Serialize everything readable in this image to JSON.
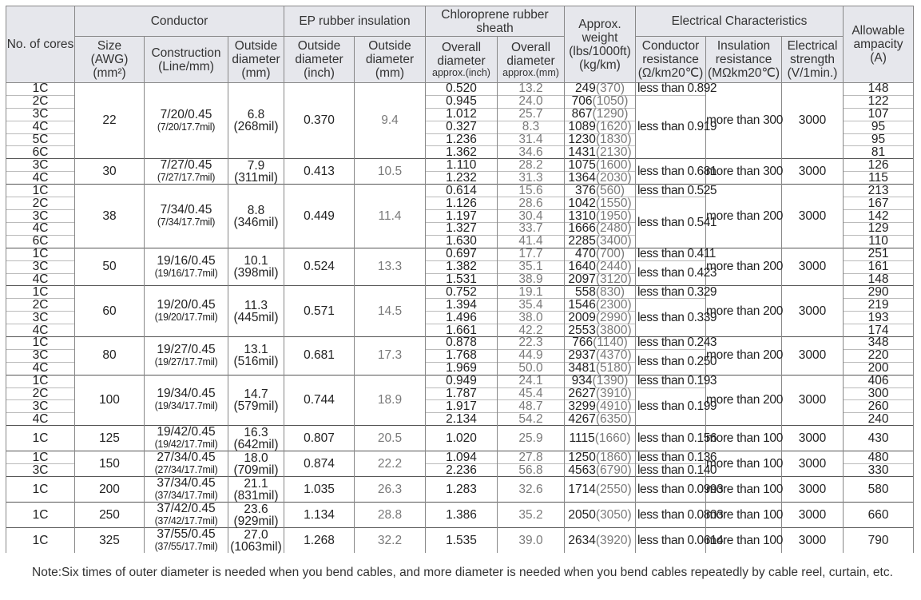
{
  "header": {
    "cores": "No. of cores",
    "conductor": "Conductor",
    "size": "Size\n(AWG)\n(mm²)",
    "construction": "Construction\n(Line/mm)",
    "conductor_od": "Outside\ndiameter\n(mm)",
    "ep": "EP rubber insulation",
    "ep_inch": "Outside\ndiameter\n(inch)",
    "ep_mm": "Outside\ndiameter\n(mm)",
    "sheath": "Chloroprene rubber\nsheath",
    "sheath_inch": "Overall\ndiameter",
    "sheath_inch_unit": "approx.(inch)",
    "sheath_mm": "Overall\ndiameter",
    "sheath_mm_unit": "approx.(mm)",
    "weight": "Approx.\nweight\n(lbs/1000ft)\n(kg/km)",
    "electrical": "Electrical Characteristics",
    "resistance": "Conductor\nresistance\n(Ω/km20℃)",
    "insulation": "Insulation\nresistance\n(MΩkm20℃)",
    "strength": "Electrical\nstrength\n(V/1min.)",
    "ampacity": "Allowable\nampacity\n(A)"
  },
  "table": {
    "groups": [
      {
        "size": "22",
        "construction": "7/20/0.45",
        "construction_detail": "(7/20/17.7mil)",
        "od": "6.8",
        "od_mil": "(268mil)",
        "ep_inch": "0.370",
        "ep_mm": "9.4",
        "insulation": "more than 300",
        "strength": "3000",
        "blocks": [
          {
            "resistance": "less than 0.892",
            "rows": [
              {
                "cores": "1C",
                "overall_inch": "0.520",
                "overall_mm": "13.2",
                "weight": "249",
                "weight_kg": "(370)",
                "ampacity": "148"
              }
            ]
          },
          {
            "resistance": "less than 0.919",
            "rows": [
              {
                "cores": "2C",
                "overall_inch": "0.945",
                "overall_mm": "24.0",
                "weight": "706",
                "weight_kg": "(1050)",
                "ampacity": "122"
              },
              {
                "cores": "3C",
                "overall_inch": "1.012",
                "overall_mm": "25.7",
                "weight": "867",
                "weight_kg": "(1290)",
                "ampacity": "107"
              },
              {
                "cores": "4C",
                "overall_inch": "0.327",
                "overall_mm": "8.3",
                "weight": "1089",
                "weight_kg": "(1620)",
                "ampacity": "95"
              },
              {
                "cores": "5C",
                "overall_inch": "1.236",
                "overall_mm": "31.4",
                "weight": "1230",
                "weight_kg": "(1830)",
                "ampacity": "95"
              },
              {
                "cores": "6C",
                "overall_inch": "1.362",
                "overall_mm": "34.6",
                "weight": "1431",
                "weight_kg": "(2130)",
                "ampacity": "81"
              }
            ]
          }
        ]
      },
      {
        "size": "30",
        "construction": "7/27/0.45",
        "construction_detail": "(7/27/17.7mil)",
        "od": "7.9",
        "od_mil": "(311mil)",
        "ep_inch": "0.413",
        "ep_mm": "10.5",
        "insulation": "more than 300",
        "strength": "3000",
        "blocks": [
          {
            "resistance": "less than 0.681",
            "rows": [
              {
                "cores": "3C",
                "overall_inch": "1.110",
                "overall_mm": "28.2",
                "weight": "1075",
                "weight_kg": "(1600)",
                "ampacity": "126"
              },
              {
                "cores": "4C",
                "overall_inch": "1.232",
                "overall_mm": "31.3",
                "weight": "1364",
                "weight_kg": "(2030)",
                "ampacity": "115"
              }
            ]
          }
        ]
      },
      {
        "size": "38",
        "construction": "7/34/0.45",
        "construction_detail": "(7/34/17.7mil)",
        "od": "8.8",
        "od_mil": "(346mil)",
        "ep_inch": "0.449",
        "ep_mm": "11.4",
        "insulation": "more than 200",
        "strength": "3000",
        "blocks": [
          {
            "resistance": "less than 0.525",
            "rows": [
              {
                "cores": "1C",
                "overall_inch": "0.614",
                "overall_mm": "15.6",
                "weight": "376",
                "weight_kg": "(560)",
                "ampacity": "213"
              }
            ]
          },
          {
            "resistance": "less than 0.541",
            "rows": [
              {
                "cores": "2C",
                "overall_inch": "1.126",
                "overall_mm": "28.6",
                "weight": "1042",
                "weight_kg": "(1550)",
                "ampacity": "167"
              },
              {
                "cores": "3C",
                "overall_inch": "1.197",
                "overall_mm": "30.4",
                "weight": "1310",
                "weight_kg": "(1950)",
                "ampacity": "142"
              },
              {
                "cores": "4C",
                "overall_inch": "1.327",
                "overall_mm": "33.7",
                "weight": "1666",
                "weight_kg": "(2480)",
                "ampacity": "129"
              },
              {
                "cores": "6C",
                "overall_inch": "1.630",
                "overall_mm": "41.4",
                "weight": "2285",
                "weight_kg": "(3400)",
                "ampacity": "110"
              }
            ]
          }
        ]
      },
      {
        "size": "50",
        "construction": "19/16/0.45",
        "construction_detail": "(19/16/17.7mil)",
        "od": "10.1",
        "od_mil": "(398mil)",
        "ep_inch": "0.524",
        "ep_mm": "13.3",
        "insulation": "more than 200",
        "strength": "3000",
        "blocks": [
          {
            "resistance": "less than 0.411",
            "rows": [
              {
                "cores": "1C",
                "overall_inch": "0.697",
                "overall_mm": "17.7",
                "weight": "470",
                "weight_kg": "(700)",
                "ampacity": "251"
              }
            ]
          },
          {
            "resistance": "less than 0.423",
            "rows": [
              {
                "cores": "3C",
                "overall_inch": "1.382",
                "overall_mm": "35.1",
                "weight": "1640",
                "weight_kg": "(2440)",
                "ampacity": "161"
              },
              {
                "cores": "4C",
                "overall_inch": "1.531",
                "overall_mm": "38.9",
                "weight": "2097",
                "weight_kg": "(3120)",
                "ampacity": "148"
              }
            ]
          }
        ]
      },
      {
        "size": "60",
        "construction": "19/20/0.45",
        "construction_detail": "(19/20/17.7mil)",
        "od": "11.3",
        "od_mil": "(445mil)",
        "ep_inch": "0.571",
        "ep_mm": "14.5",
        "insulation": "more than 200",
        "strength": "3000",
        "blocks": [
          {
            "resistance": "less than 0.329",
            "rows": [
              {
                "cores": "1C",
                "overall_inch": "0.752",
                "overall_mm": "19.1",
                "weight": "558",
                "weight_kg": "(830)",
                "ampacity": "290"
              }
            ]
          },
          {
            "resistance": "less than 0.339",
            "rows": [
              {
                "cores": "2C",
                "overall_inch": "1.394",
                "overall_mm": "35.4",
                "weight": "1546",
                "weight_kg": "(2300)",
                "ampacity": "219"
              },
              {
                "cores": "3C",
                "overall_inch": "1.496",
                "overall_mm": "38.0",
                "weight": "2009",
                "weight_kg": "(2990)",
                "ampacity": "193"
              },
              {
                "cores": "4C",
                "overall_inch": "1.661",
                "overall_mm": "42.2",
                "weight": "2553",
                "weight_kg": "(3800)",
                "ampacity": "174"
              }
            ]
          }
        ]
      },
      {
        "size": "80",
        "construction": "19/27/0.45",
        "construction_detail": "(19/27/17.7mil)",
        "od": "13.1",
        "od_mil": "(516mil)",
        "ep_inch": "0.681",
        "ep_mm": "17.3",
        "insulation": "more than 200",
        "strength": "3000",
        "blocks": [
          {
            "resistance": "less than 0.243",
            "rows": [
              {
                "cores": "1C",
                "overall_inch": "0.878",
                "overall_mm": "22.3",
                "weight": "766",
                "weight_kg": "(1140)",
                "ampacity": "348"
              }
            ]
          },
          {
            "resistance": "less than 0.250",
            "rows": [
              {
                "cores": "3C",
                "overall_inch": "1.768",
                "overall_mm": "44.9",
                "weight": "2937",
                "weight_kg": "(4370)",
                "ampacity": "220"
              },
              {
                "cores": "4C",
                "overall_inch": "1.969",
                "overall_mm": "50.0",
                "weight": "3481",
                "weight_kg": "(5180)",
                "ampacity": "200"
              }
            ]
          }
        ]
      },
      {
        "size": "100",
        "construction": "19/34/0.45",
        "construction_detail": "(19/34/17.7mil)",
        "od": "14.7",
        "od_mil": "(579mil)",
        "ep_inch": "0.744",
        "ep_mm": "18.9",
        "insulation": "more than 200",
        "strength": "3000",
        "blocks": [
          {
            "resistance": "less than 0.193",
            "rows": [
              {
                "cores": "1C",
                "overall_inch": "0.949",
                "overall_mm": "24.1",
                "weight": "934",
                "weight_kg": "(1390)",
                "ampacity": "406"
              }
            ]
          },
          {
            "resistance": "less than 0.199",
            "rows": [
              {
                "cores": "2C",
                "overall_inch": "1.787",
                "overall_mm": "45.4",
                "weight": "2627",
                "weight_kg": "(3910)",
                "ampacity": "300"
              },
              {
                "cores": "3C",
                "overall_inch": "1.917",
                "overall_mm": "48.7",
                "weight": "3299",
                "weight_kg": "(4910)",
                "ampacity": "260"
              },
              {
                "cores": "4C",
                "overall_inch": "2.134",
                "overall_mm": "54.2",
                "weight": "4267",
                "weight_kg": "(6350)",
                "ampacity": "240"
              }
            ]
          }
        ]
      },
      {
        "size": "125",
        "construction": "19/42/0.45",
        "construction_detail": "(19/42/17.7mil)",
        "od": "16.3",
        "od_mil": "(642mil)",
        "ep_inch": "0.807",
        "ep_mm": "20.5",
        "insulation": "more than 100",
        "strength": "3000",
        "blocks": [
          {
            "resistance": "less than 0.156",
            "rows": [
              {
                "cores": "1C",
                "overall_inch": "1.020",
                "overall_mm": "25.9",
                "weight": "1115",
                "weight_kg": "(1660)",
                "ampacity": "430"
              }
            ]
          }
        ]
      },
      {
        "size": "150",
        "construction": "27/34/0.45",
        "construction_detail": "(27/34/17.7mil)",
        "od": "18.0",
        "od_mil": "(709mil)",
        "ep_inch": "0.874",
        "ep_mm": "22.2",
        "insulation": "more than 100",
        "strength": "3000",
        "blocks": [
          {
            "resistance": "less than 0.136",
            "rows": [
              {
                "cores": "1C",
                "overall_inch": "1.094",
                "overall_mm": "27.8",
                "weight": "1250",
                "weight_kg": "(1860)",
                "ampacity": "480"
              }
            ]
          },
          {
            "resistance": "less than 0.140",
            "rows": [
              {
                "cores": "3C",
                "overall_inch": "2.236",
                "overall_mm": "56.8",
                "weight": "4563",
                "weight_kg": "(6790)",
                "ampacity": "330"
              }
            ]
          }
        ]
      },
      {
        "size": "200",
        "construction": "37/34/0.45",
        "construction_detail": "(37/34/17.7mil)",
        "od": "21.1",
        "od_mil": "(831mil)",
        "ep_inch": "1.035",
        "ep_mm": "26.3",
        "insulation": "more than 100",
        "strength": "3000",
        "blocks": [
          {
            "resistance": "less than 0.0993",
            "rows": [
              {
                "cores": "1C",
                "overall_inch": "1.283",
                "overall_mm": "32.6",
                "weight": "1714",
                "weight_kg": "(2550)",
                "ampacity": "580"
              }
            ]
          }
        ]
      },
      {
        "size": "250",
        "construction": "37/42/0.45",
        "construction_detail": "(37/42/17.7mil)",
        "od": "23.6",
        "od_mil": "(929mil)",
        "ep_inch": "1.134",
        "ep_mm": "28.8",
        "insulation": "more than 100",
        "strength": "3000",
        "blocks": [
          {
            "resistance": "less than 0.0803",
            "rows": [
              {
                "cores": "1C",
                "overall_inch": "1.386",
                "overall_mm": "35.2",
                "weight": "2050",
                "weight_kg": "(3050)",
                "ampacity": "660"
              }
            ]
          }
        ]
      },
      {
        "size": "325",
        "construction": "37/55/0.45",
        "construction_detail": "(37/55/17.7mil)",
        "od": "27.0",
        "od_mil": "(1063mil)",
        "ep_inch": "1.268",
        "ep_mm": "32.2",
        "insulation": "more than 100",
        "strength": "3000",
        "blocks": [
          {
            "resistance": "less than 0.0614",
            "rows": [
              {
                "cores": "1C",
                "overall_inch": "1.535",
                "overall_mm": "39.0",
                "weight": "2634",
                "weight_kg": "(3920)",
                "ampacity": "790"
              }
            ]
          }
        ]
      }
    ]
  },
  "note": "Note:Six times of outer diameter is needed when you bend cables, and more diameter is needed when you bend cables repeatedly by cable reel, curtain, etc."
}
